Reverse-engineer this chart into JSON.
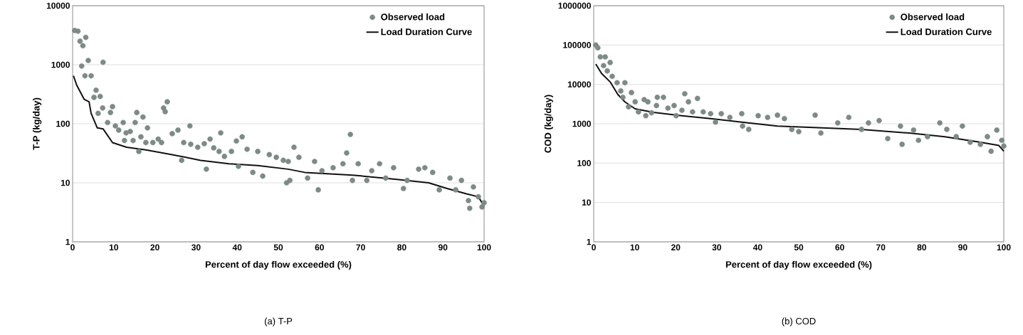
{
  "chart_data": [
    {
      "type": "scatter",
      "title": "(a) T-P",
      "xlabel": "Percent of day flow exceeded (%)",
      "ylabel": "T-P (kg/day)",
      "log": true,
      "grid": "y",
      "legend": "top right",
      "xlim": [
        0,
        100
      ],
      "xticks": [
        0,
        10,
        20,
        30,
        40,
        50,
        60,
        70,
        80,
        90,
        100
      ],
      "ylim": [
        1,
        10000
      ],
      "yticks": [
        1,
        10,
        100,
        1000,
        10000
      ],
      "series": [
        {
          "name": "Observed load",
          "marker": "circle",
          "color": "#7d8a87",
          "x": [
            0.5,
            1.3,
            1.8,
            2.5,
            3.2,
            2.2,
            3.8,
            3.0,
            4.5,
            7.4,
            5.7,
            5.2,
            6.7,
            6.2,
            7.3,
            8.5,
            9.7,
            9.2,
            10.4,
            11.2,
            12.3,
            13,
            15.6,
            17.1,
            14,
            12.6,
            14.7,
            16.1,
            15.2,
            18.2,
            16.6,
            17.8,
            19.5,
            20.8,
            21.6,
            22.1,
            23,
            22.5,
            24.2,
            25.6,
            26.5,
            28.5,
            27,
            28.7,
            30.4,
            32,
            32.5,
            33.4,
            34.3,
            36,
            35.6,
            36.9,
            38.6,
            39.8,
            41.2,
            40.3,
            42.4,
            43.8,
            45,
            46.2,
            47.8,
            49.5,
            52,
            51.2,
            52.4,
            52.8,
            53.8,
            55,
            57.1,
            59.7,
            58.8,
            60.6,
            63.3,
            65.7,
            66.6,
            67.5,
            68,
            69.4,
            71.5,
            72.7,
            74.6,
            76.1,
            78,
            80.4,
            81.3,
            84.1,
            85.6,
            87.5,
            89.1,
            91.7,
            93.1,
            94.5,
            96.2,
            96.5,
            97.4,
            98.6,
            99.5,
            100
          ],
          "values": [
            3800,
            3700,
            2500,
            2100,
            2900,
            950,
            1180,
            650,
            650,
            1100,
            370,
            280,
            290,
            150,
            185,
            105,
            195,
            155,
            92,
            78,
            105,
            70,
            155,
            130,
            74,
            52,
            52,
            34,
            105,
            85,
            60,
            48,
            48,
            55,
            48,
            185,
            235,
            160,
            68,
            78,
            24,
            92,
            48,
            45,
            40,
            46,
            17,
            55,
            39,
            70,
            34,
            28,
            34,
            51,
            60,
            19,
            37,
            15,
            34,
            13,
            30,
            27,
            10,
            24,
            23,
            11,
            40,
            27,
            12,
            7.6,
            23,
            16,
            18,
            21,
            32,
            66,
            11,
            21,
            11,
            16,
            21,
            12,
            18,
            8,
            11,
            17,
            18,
            15,
            7.6,
            12,
            7.6,
            11,
            5,
            3.7,
            8.5,
            5.8,
            3.9,
            4.6
          ]
        },
        {
          "name": "Load Duration Curve",
          "type": "line",
          "marker": "none",
          "color": "#111111",
          "x": [
            0.2,
            1,
            2.8,
            4,
            4.5,
            6,
            7.4,
            9.7,
            13.1,
            17.8,
            24.2,
            31.1,
            38,
            45,
            52.4,
            56.4,
            68,
            78.4,
            86.5,
            91,
            95.7,
            98.6,
            100
          ],
          "values": [
            650,
            450,
            260,
            235,
            150,
            85,
            82,
            48,
            40,
            36,
            30,
            24,
            21,
            19.6,
            17,
            15,
            13.5,
            11.5,
            10,
            8,
            6.5,
            5.8,
            4
          ]
        }
      ]
    },
    {
      "type": "scatter",
      "title": "(b) COD",
      "xlabel": "Percent of day flow exceeded (%)",
      "ylabel": "COD (kg/day)",
      "log": true,
      "grid": "y",
      "legend": "top right",
      "xlim": [
        0,
        100
      ],
      "xticks": [
        0,
        10,
        20,
        30,
        40,
        50,
        60,
        70,
        80,
        90,
        100
      ],
      "ylim": [
        1,
        1000000
      ],
      "yticks": [
        1,
        10,
        100,
        1000,
        10000,
        100000,
        1000000
      ],
      "series": [
        {
          "name": "Observed load",
          "marker": "circle",
          "color": "#7d8a87",
          "x": [
            0.5,
            1,
            1.6,
            2.8,
            2.4,
            4,
            3.3,
            4.5,
            5.7,
            7.6,
            6.6,
            9.2,
            7.1,
            8.5,
            10.1,
            10.9,
            12.3,
            13.2,
            12.7,
            15.5,
            17,
            15.3,
            14.1,
            18.1,
            19.6,
            20.1,
            22.2,
            23.1,
            21.5,
            25.3,
            24.1,
            26.7,
            28.5,
            29.7,
            31.1,
            33.2,
            36.1,
            36.3,
            37.8,
            40.1,
            42.4,
            44.8,
            46.5,
            48.3,
            50,
            54,
            62.2,
            55.4,
            59.5,
            65.3,
            67,
            69.6,
            71.7,
            74.8,
            75.2,
            78,
            79.2,
            81.4,
            84.4,
            86.1,
            88.4,
            89.9,
            91.8,
            94.3,
            96,
            96.9,
            98.3,
            99.5,
            100
          ],
          "values": [
            100000,
            85000,
            50000,
            50000,
            30000,
            36000,
            22000,
            16000,
            11000,
            11000,
            6800,
            6200,
            4700,
            2700,
            3600,
            2000,
            4100,
            3600,
            1600,
            4700,
            4700,
            2900,
            1900,
            2500,
            2900,
            1600,
            5800,
            3600,
            2200,
            4400,
            2000,
            2000,
            1800,
            1100,
            1800,
            1450,
            1800,
            870,
            720,
            1600,
            1450,
            1650,
            1350,
            720,
            630,
            1650,
            1450,
            580,
            1050,
            720,
            1050,
            1200,
            420,
            870,
            300,
            690,
            380,
            470,
            1050,
            720,
            470,
            870,
            340,
            300,
            470,
            200,
            690,
            380,
            270
          ]
        },
        {
          "name": "Load Duration Curve",
          "type": "line",
          "marker": "none",
          "color": "#111111",
          "x": [
            0.5,
            1.9,
            4,
            5.9,
            7.6,
            10.1,
            14.6,
            21.5,
            28.5,
            36.1,
            44.8,
            53.6,
            65.3,
            76.9,
            85.6,
            94.3,
            98.8,
            100
          ],
          "values": [
            33000,
            19000,
            11600,
            5500,
            3600,
            2400,
            1950,
            1600,
            1350,
            1100,
            870,
            800,
            720,
            580,
            470,
            340,
            280,
            200
          ]
        }
      ]
    }
  ]
}
